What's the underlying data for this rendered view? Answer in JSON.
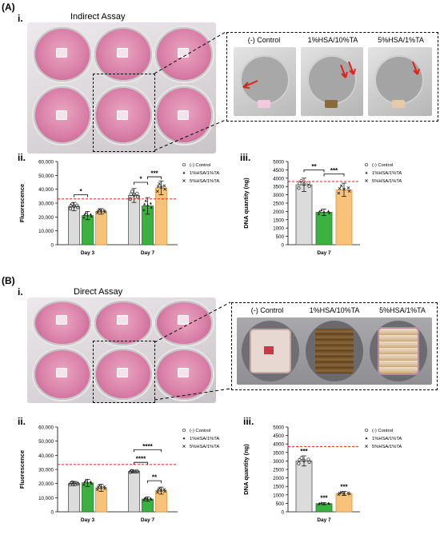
{
  "panels": [
    {
      "id": "A",
      "letter": "(A)",
      "photo_label": "i.",
      "photo_title": "Indirect Assay",
      "zoom_labels": [
        "(-) Control",
        "1%HSA/10%TA",
        "5%HSA/1%TA"
      ],
      "fluor_label": "ii.",
      "dna_label": "iii."
    },
    {
      "id": "B",
      "letter": "(B)",
      "photo_label": "i.",
      "photo_title": "Direct Assay",
      "zoom_labels": [
        "(-) Control",
        "1%HSA/10%TA",
        "5%HSA/1%TA"
      ],
      "fluor_label": "ii.",
      "dna_label": "iii."
    }
  ],
  "colors": {
    "control": "#dcdcdc",
    "hsa10": "#3cb040",
    "hsa1": "#f7c27a",
    "threshold": "#e0201b",
    "arrow": "#e0201b"
  },
  "chart_data": [
    {
      "panel": "A.ii",
      "type": "bar",
      "ylabel": "Fluorescence",
      "categories": [
        "Day 3",
        "Day 7"
      ],
      "ylim": [
        0,
        60000
      ],
      "yticks": [
        "0",
        "10,000",
        "20,000",
        "30,000",
        "40,000",
        "50,000",
        "60,000"
      ],
      "threshold": 33000,
      "series": [
        {
          "name": "(-) Control",
          "values": [
            27500,
            35500
          ],
          "err": [
            3000,
            5000
          ]
        },
        {
          "name": "1%HSA/1%TA",
          "values": [
            21000,
            28000
          ],
          "err": [
            3000,
            6000
          ]
        },
        {
          "name": "5%HSA/1%TA",
          "values": [
            24000,
            41000
          ],
          "err": [
            2000,
            5000
          ]
        }
      ],
      "legend": [
        "(-) Control",
        "1%HSA/1%TA",
        "5%HSA/1%TA"
      ],
      "significance": [
        "*",
        "*",
        "***"
      ]
    },
    {
      "panel": "A.iii",
      "type": "bar",
      "ylabel": "DNA quantity (ng)",
      "categories": [
        "Day 7"
      ],
      "ylim": [
        0,
        5000
      ],
      "yticks": [
        "0",
        "500",
        "1000",
        "1500",
        "2000",
        "2500",
        "3000",
        "3500",
        "4000",
        "4500",
        "5000"
      ],
      "threshold": 3800,
      "series": [
        {
          "name": "(-) Control",
          "values": [
            3600
          ],
          "err": [
            400
          ]
        },
        {
          "name": "1%HSA/1%TA",
          "values": [
            1950
          ],
          "err": [
            200
          ]
        },
        {
          "name": "5%HSA/1%TA",
          "values": [
            3300
          ],
          "err": [
            400
          ]
        }
      ],
      "legend": [
        "(-) Control",
        "1%HSA/1%TA",
        "5%HSA/1%TA"
      ],
      "significance": [
        "**",
        "***"
      ]
    },
    {
      "panel": "B.ii",
      "type": "bar",
      "ylabel": "Fluorescence",
      "categories": [
        "Day 3",
        "Day 7"
      ],
      "ylim": [
        0,
        60000
      ],
      "yticks": [
        "0",
        "10,000",
        "20,000",
        "30,000",
        "40,000",
        "50,000",
        "60,000"
      ],
      "threshold": 33500,
      "series": [
        {
          "name": "(-) Control",
          "values": [
            20000,
            28500
          ],
          "err": [
            1500,
            1000
          ]
        },
        {
          "name": "1%HSA/1%TA",
          "values": [
            20500,
            9000
          ],
          "err": [
            2500,
            1500
          ]
        },
        {
          "name": "5%HSA/1%TA",
          "values": [
            17000,
            15000
          ],
          "err": [
            2500,
            2500
          ]
        }
      ],
      "legend": [
        "(-) Control",
        "1%HSA/1%TA",
        "5%HSA/1%TA"
      ],
      "significance": [
        "****",
        "****",
        "**"
      ]
    },
    {
      "panel": "B.iii",
      "type": "bar",
      "ylabel": "DNA quantity (ng)",
      "categories": [
        "Day 7"
      ],
      "ylim": [
        0,
        5000
      ],
      "yticks": [
        "0",
        "500",
        "1000",
        "1500",
        "2000",
        "2500",
        "3000",
        "3500",
        "4000",
        "4500",
        "5000"
      ],
      "threshold": 3850,
      "series": [
        {
          "name": "(-) Control",
          "values": [
            3000
          ],
          "err": [
            300
          ]
        },
        {
          "name": "1%HSA/1%TA",
          "values": [
            480
          ],
          "err": [
            60
          ]
        },
        {
          "name": "5%HSA/1%TA",
          "values": [
            1080
          ],
          "err": [
            120
          ]
        }
      ],
      "legend": [
        "(-) Control",
        "1%HSA/1%TA",
        "5%HSA/1%TA"
      ],
      "bar_marks": [
        "***",
        "***",
        "***"
      ]
    }
  ]
}
